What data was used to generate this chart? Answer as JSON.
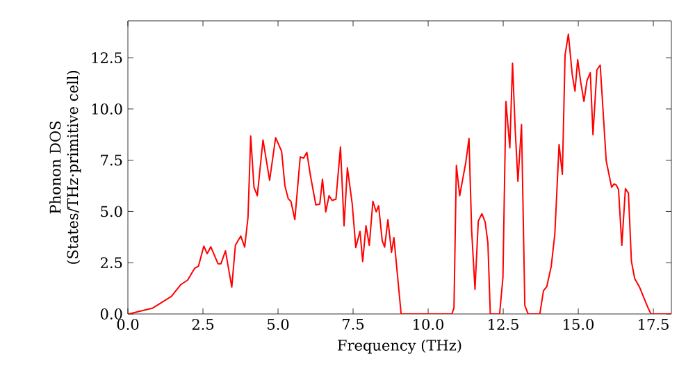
{
  "chart_data": {
    "type": "line",
    "xlabel": "Frequency (THz)",
    "ylabel": "Phonon DOS\n(States/THz·primitive cell)",
    "color": "#ff0000",
    "marker": "none",
    "line_style": "solid",
    "x": [
      0.03,
      0.83,
      1.45,
      1.76,
      1.99,
      2.22,
      2.35,
      2.53,
      2.64,
      2.76,
      3.0,
      3.1,
      3.25,
      3.46,
      3.58,
      3.76,
      3.89,
      4.0,
      4.09,
      4.2,
      4.31,
      4.5,
      4.72,
      4.92,
      5.12,
      5.23,
      5.34,
      5.43,
      5.56,
      5.74,
      5.85,
      5.96,
      6.08,
      6.26,
      6.39,
      6.48,
      6.59,
      6.7,
      6.8,
      6.93,
      7.08,
      7.2,
      7.31,
      7.47,
      7.59,
      7.73,
      7.82,
      7.93,
      8.04,
      8.16,
      8.27,
      8.35,
      8.47,
      8.55,
      8.66,
      8.78,
      8.86,
      9.1,
      10.79,
      10.86,
      10.94,
      11.05,
      11.25,
      11.36,
      11.45,
      11.56,
      11.67,
      11.79,
      11.9,
      11.99,
      12.07,
      12.38,
      12.49,
      12.59,
      12.72,
      12.81,
      12.9,
      12.99,
      13.11,
      13.22,
      13.33,
      13.72,
      13.84,
      13.95,
      14.1,
      14.22,
      14.36,
      14.47,
      14.56,
      14.67,
      14.8,
      14.89,
      14.98,
      15.08,
      15.19,
      15.29,
      15.4,
      15.49,
      15.62,
      15.73,
      15.93,
      16.11,
      16.19,
      16.26,
      16.34,
      16.45,
      16.57,
      16.67,
      16.77,
      16.88,
      17.04,
      17.31,
      17.42,
      18.1
    ],
    "values": [
      0,
      0.29,
      0.86,
      1.43,
      1.65,
      2.22,
      2.33,
      3.31,
      2.94,
      3.28,
      2.45,
      2.45,
      3.08,
      1.31,
      3.35,
      3.8,
      3.26,
      4.71,
      8.68,
      6.18,
      5.77,
      8.49,
      6.52,
      8.6,
      7.93,
      6.25,
      5.62,
      5.5,
      4.6,
      7.66,
      7.6,
      7.88,
      6.75,
      5.32,
      5.36,
      6.57,
      4.98,
      5.77,
      5.54,
      5.6,
      8.15,
      4.3,
      7.13,
      5.38,
      3.24,
      4.03,
      2.56,
      4.3,
      3.35,
      5.5,
      4.98,
      5.28,
      3.58,
      3.26,
      4.6,
      3.01,
      3.73,
      0,
      0,
      0.29,
      7.25,
      5.77,
      7.36,
      8.56,
      4.03,
      1.2,
      4.53,
      4.89,
      4.48,
      3.46,
      0,
      0,
      1.77,
      10.37,
      8.11,
      12.23,
      8.97,
      6.47,
      9.24,
      0.41,
      0,
      0,
      1.13,
      1.33,
      2.33,
      3.92,
      8.27,
      6.81,
      12.64,
      13.65,
      11.66,
      10.87,
      12.41,
      11.32,
      10.37,
      11.39,
      11.77,
      8.74,
      11.91,
      12.14,
      7.47,
      6.18,
      6.34,
      6.3,
      6.07,
      3.35,
      6.11,
      5.89,
      2.56,
      1.72,
      1.31,
      0.34,
      0,
      0
    ],
    "xlim": [
      0,
      18.1
    ],
    "ylim": [
      0,
      14.3
    ],
    "xticks": [
      {
        "value": 0,
        "label": "0.0"
      },
      2.5,
      {
        "value": 5,
        "label": "5.0"
      },
      7.5,
      {
        "value": 10,
        "label": "10.0"
      },
      12.5,
      {
        "value": 15,
        "label": "15.0"
      },
      17.5
    ],
    "yticks": [
      {
        "value": 0,
        "label": "0.0"
      },
      2.5,
      {
        "value": 5,
        "label": "5.0"
      },
      7.5,
      {
        "value": 10,
        "label": "10.0"
      },
      12.5
    ]
  }
}
